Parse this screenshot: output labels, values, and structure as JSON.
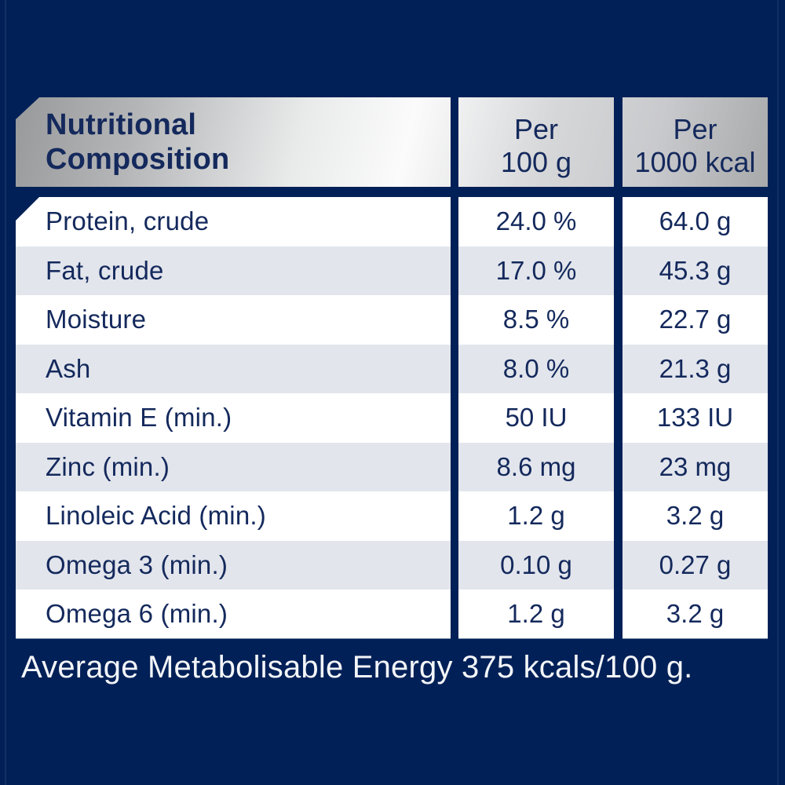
{
  "colors": {
    "bg": "#012057",
    "ink": "#14295c",
    "row_alt": "#e2e5ec",
    "white": "#ffffff",
    "silver_dark": "#98999b",
    "silver_mid": "#c9cacd",
    "silver_light": "#fbfbfb",
    "footer": "#f3f5f8"
  },
  "table": {
    "header": {
      "title": "Nutritional\nComposition",
      "col_per_100g": "Per\n100 g",
      "col_per_1000kcal": "Per\n1000 kcal"
    },
    "rows": [
      {
        "label": "Protein, crude",
        "per_100g": "24.0 %",
        "per_1000kcal": "64.0 g"
      },
      {
        "label": "Fat, crude",
        "per_100g": "17.0 %",
        "per_1000kcal": "45.3 g"
      },
      {
        "label": "Moisture",
        "per_100g": "8.5 %",
        "per_1000kcal": "22.7 g"
      },
      {
        "label": "Ash",
        "per_100g": "8.0 %",
        "per_1000kcal": "21.3 g"
      },
      {
        "label": "Vitamin E (min.)",
        "per_100g": "50 IU",
        "per_1000kcal": "133 IU"
      },
      {
        "label": "Zinc (min.)",
        "per_100g": "8.6 mg",
        "per_1000kcal": "23 mg"
      },
      {
        "label": "Linoleic Acid (min.)",
        "per_100g": "1.2 g",
        "per_1000kcal": "3.2 g"
      },
      {
        "label": "Omega 3 (min.)",
        "per_100g": "0.10 g",
        "per_1000kcal": "0.27 g"
      },
      {
        "label": "Omega 6 (min.)",
        "per_100g": "1.2 g",
        "per_1000kcal": "3.2 g"
      }
    ]
  },
  "footer": {
    "text": "Average Metabolisable Energy 375 kcals/100 g."
  }
}
